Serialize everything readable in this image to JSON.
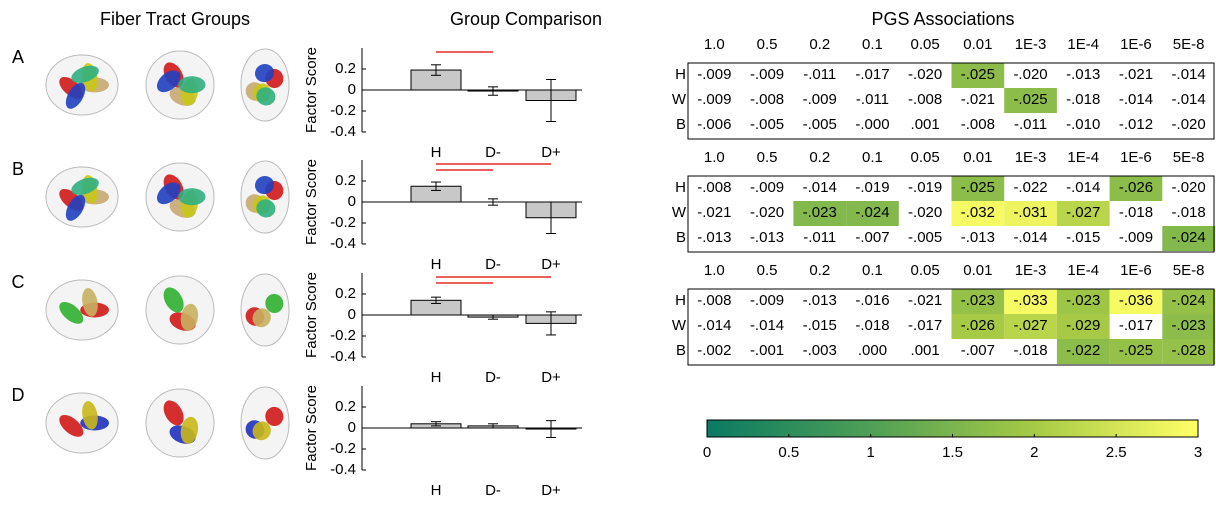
{
  "titles": {
    "fibers": "Fiber Tract Groups",
    "comparison": "Group Comparison",
    "pgs": "PGS Associations"
  },
  "row_labels": [
    "A",
    "B",
    "C",
    "D"
  ],
  "chart_data": [
    {
      "type": "bar",
      "ylabel": "Factor Score",
      "categories": [
        "H",
        "D-",
        "D+"
      ],
      "values": [
        0.19,
        -0.01,
        -0.1
      ],
      "errors": [
        0.05,
        0.04,
        0.2
      ],
      "color": "#c8c8c8",
      "ylim": [
        -0.4,
        0.4
      ],
      "yticks": [
        0.2,
        0,
        -0.2,
        -0.4
      ],
      "significant_pairs": [
        [
          0,
          1
        ]
      ],
      "pair_color": "#e00000"
    },
    {
      "type": "bar",
      "ylabel": "Factor Score",
      "categories": [
        "H",
        "D-",
        "D+"
      ],
      "values": [
        0.15,
        0.0,
        -0.15
      ],
      "errors": [
        0.04,
        0.03,
        0.15
      ],
      "color": "#c8c8c8",
      "ylim": [
        -0.4,
        0.4
      ],
      "yticks": [
        0.2,
        0,
        -0.2,
        -0.4
      ],
      "significant_pairs": [
        [
          0,
          2
        ],
        [
          0,
          1
        ]
      ],
      "pair_color": "#e00000"
    },
    {
      "type": "bar",
      "ylabel": "Factor Score",
      "categories": [
        "H",
        "D-",
        "D+"
      ],
      "values": [
        0.14,
        -0.02,
        -0.08
      ],
      "errors": [
        0.03,
        0.02,
        0.11
      ],
      "color": "#c8c8c8",
      "ylim": [
        -0.4,
        0.4
      ],
      "yticks": [
        0.2,
        0,
        -0.2,
        -0.4
      ],
      "significant_pairs": [
        [
          0,
          2
        ],
        [
          0,
          1
        ]
      ],
      "pair_color": "#e00000"
    },
    {
      "type": "bar",
      "ylabel": "Factor Score",
      "categories": [
        "H",
        "D-",
        "D+"
      ],
      "values": [
        0.04,
        0.02,
        -0.01
      ],
      "errors": [
        0.02,
        0.02,
        0.08
      ],
      "color": "#c8c8c8",
      "ylim": [
        -0.4,
        0.4
      ],
      "yticks": [
        0.2,
        0,
        -0.2,
        -0.4
      ],
      "significant_pairs": [],
      "pair_color": "#e00000"
    }
  ],
  "pgs": {
    "columns": [
      "1.0",
      "0.5",
      "0.2",
      "0.1",
      "0.05",
      "0.01",
      "1E-3",
      "1E-4",
      "1E-6",
      "5E-8"
    ],
    "rows": [
      "H",
      "W",
      "B"
    ],
    "tables": [
      {
        "cells": [
          [
            "-.009",
            "-.009",
            "-.011",
            "-.017",
            "-.020",
            "-.025",
            "-.020",
            "-.013",
            "-.021",
            "-.014"
          ],
          [
            "-.009",
            "-.008",
            "-.009",
            "-.011",
            "-.008",
            "-.021",
            "-.025",
            "-.018",
            "-.014",
            "-.014"
          ],
          [
            "-.006",
            "-.005",
            "-.005",
            "-.000",
            ".001",
            "-.008",
            "-.011",
            "-.010",
            "-.012",
            "-.020"
          ]
        ],
        "shading": [
          [
            null,
            null,
            null,
            null,
            null,
            1.7,
            null,
            null,
            null,
            null
          ],
          [
            null,
            null,
            null,
            null,
            null,
            null,
            1.7,
            null,
            null,
            null
          ],
          [
            null,
            null,
            null,
            null,
            null,
            null,
            null,
            null,
            null,
            null
          ]
        ]
      },
      {
        "cells": [
          [
            "-.008",
            "-.009",
            "-.014",
            "-.019",
            "-.019",
            "-.025",
            "-.022",
            "-.014",
            "-.026",
            "-.020"
          ],
          [
            "-.021",
            "-.020",
            "-.023",
            "-.024",
            "-.020",
            "-.032",
            "-.031",
            "-.027",
            "-.018",
            "-.018"
          ],
          [
            "-.013",
            "-.013",
            "-.011",
            "-.007",
            "-.005",
            "-.013",
            "-.014",
            "-.015",
            "-.009",
            "-.024"
          ]
        ],
        "shading": [
          [
            null,
            null,
            null,
            null,
            null,
            1.7,
            null,
            null,
            1.7,
            null
          ],
          [
            null,
            null,
            1.6,
            1.6,
            null,
            2.9,
            2.8,
            2.2,
            null,
            null
          ],
          [
            null,
            null,
            null,
            null,
            null,
            null,
            null,
            null,
            null,
            1.6
          ]
        ]
      },
      {
        "cells": [
          [
            "-.008",
            "-.009",
            "-.013",
            "-.016",
            "-.021",
            "-.023",
            "-.033",
            "-.023",
            "-.036",
            "-.024"
          ],
          [
            "-.014",
            "-.014",
            "-.015",
            "-.018",
            "-.017",
            "-.026",
            "-.027",
            "-.029",
            "-.017",
            "-.023"
          ],
          [
            "-.002",
            "-.001",
            "-.003",
            ".000",
            ".001",
            "-.007",
            "-.018",
            "-.022",
            "-.025",
            "-.028"
          ]
        ],
        "shading": [
          [
            null,
            null,
            null,
            null,
            null,
            1.8,
            2.9,
            1.9,
            2.9,
            1.8
          ],
          [
            null,
            null,
            null,
            null,
            null,
            2.0,
            2.2,
            2.0,
            null,
            1.7
          ],
          [
            null,
            null,
            null,
            null,
            null,
            null,
            null,
            1.7,
            1.8,
            1.8
          ]
        ]
      }
    ]
  },
  "colorbar": {
    "lim": [
      0,
      3
    ],
    "ticks": [
      0,
      0.5,
      1,
      1.5,
      2,
      2.5,
      3
    ],
    "colormap": [
      "#0a7a62",
      "#4f9f56",
      "#a6ca45",
      "#ffff66"
    ]
  }
}
